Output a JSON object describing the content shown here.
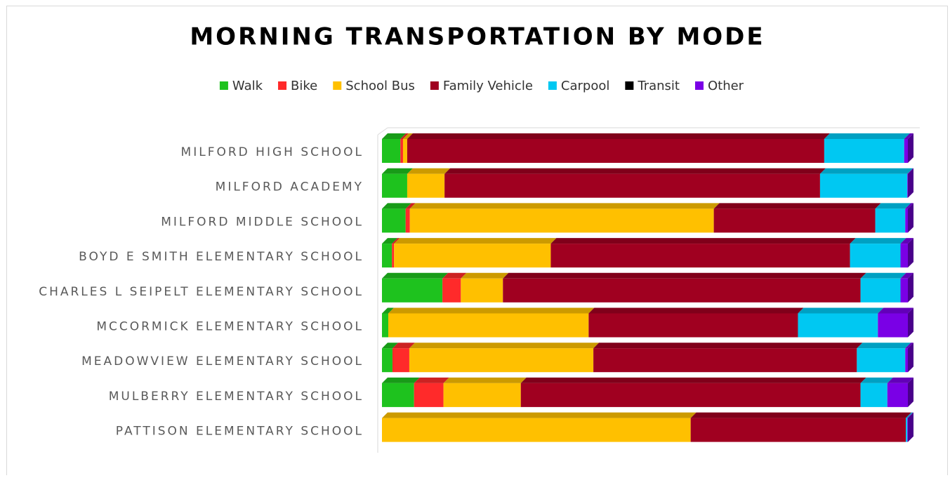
{
  "chart_data": {
    "type": "stacked_bar_100_3d",
    "title": "MORNING TRANSPORTATION BY MODE",
    "categories": [
      "MILFORD HIGH SCHOOL",
      "MILFORD ACADEMY",
      "MILFORD MIDDLE SCHOOL",
      "BOYD E SMITH ELEMENTARY SCHOOL",
      "CHARLES L SEIPELT ELEMENTARY SCHOOL",
      "MCCORMICK ELEMENTARY SCHOOL",
      "MEADOWVIEW ELEMENTARY SCHOOL",
      "MULBERRY ELEMENTARY SCHOOL",
      "PATTISON ELEMENTARY SCHOOL"
    ],
    "series": [
      {
        "name": "Walk",
        "color": "#1ec21e",
        "values": [
          3.5,
          4.8,
          4.5,
          1.9,
          11.5,
          1.2,
          2.0,
          6.1,
          0
        ]
      },
      {
        "name": "Bike",
        "color": "#ff2a2a",
        "values": [
          0.5,
          0,
          0.8,
          0.4,
          3.5,
          0,
          3.2,
          5.6,
          0
        ]
      },
      {
        "name": "School Bus",
        "color": "#ffc000",
        "values": [
          0.8,
          7.1,
          57.8,
          29.8,
          8.0,
          38.1,
          35.0,
          14.7,
          58.7
        ]
      },
      {
        "name": "Family Vehicle",
        "color": "#a00020",
        "values": [
          79.3,
          71.4,
          30.7,
          56.9,
          68.0,
          39.8,
          50.1,
          64.6,
          40.9
        ]
      },
      {
        "name": "Carpool",
        "color": "#00c8f2",
        "values": [
          15.2,
          16.6,
          5.7,
          9.6,
          7.6,
          15.2,
          9.2,
          5.1,
          0.3
        ]
      },
      {
        "name": "Transit",
        "color": "#000000",
        "values": [
          0,
          0,
          0,
          0,
          0,
          0,
          0,
          0,
          0
        ]
      },
      {
        "name": "Other",
        "color": "#7a00e6",
        "values": [
          0.7,
          0.1,
          0.5,
          1.4,
          1.4,
          5.7,
          0.5,
          3.9,
          0.1
        ]
      }
    ],
    "xlim": [
      0,
      100
    ],
    "legend": "top"
  }
}
